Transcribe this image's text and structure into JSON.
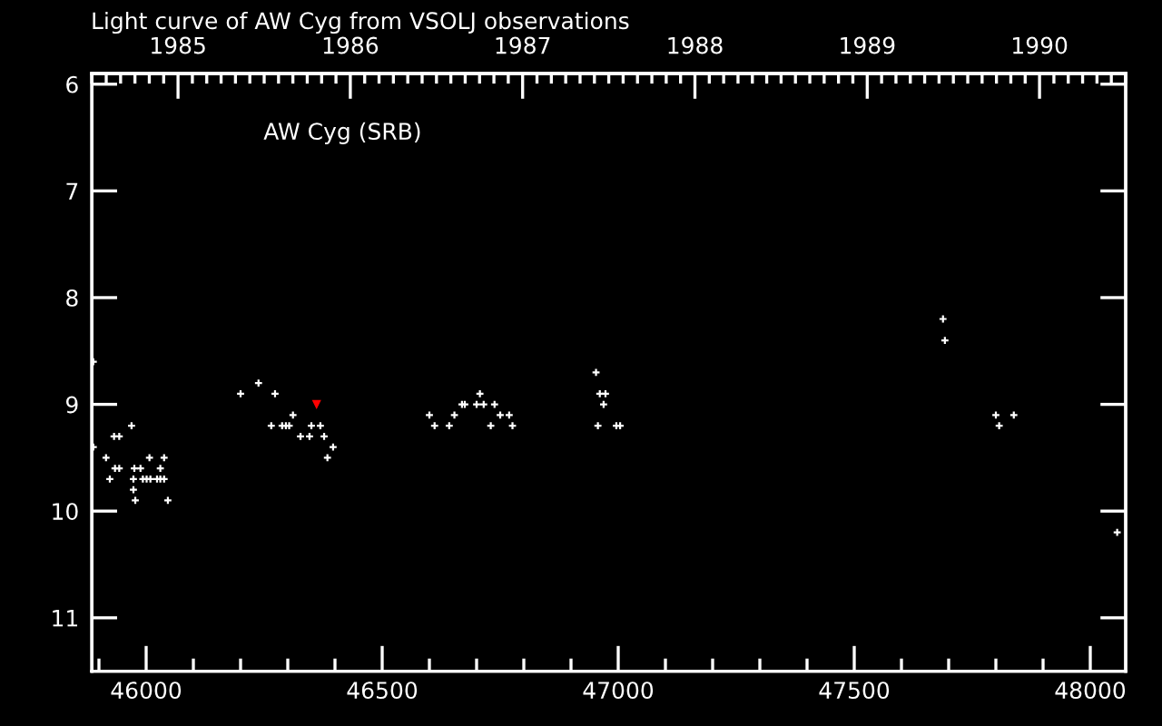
{
  "chart_data": {
    "type": "scatter",
    "title": "Light curve of AW Cyg from VSOLJ observations",
    "annotations": [
      "AW Cyg (SRB)"
    ],
    "marker": "cross",
    "grid": false,
    "xlim": [
      45885,
      48075
    ],
    "xticks": [
      46000,
      46500,
      47000,
      47500,
      48000
    ],
    "ylim": [
      11.5,
      5.9
    ],
    "yticks": [
      6,
      7,
      8,
      9,
      10,
      11
    ],
    "x2lim": [
      1984.5,
      1990.5
    ],
    "x2ticks": [
      1985,
      1986,
      1987,
      1988,
      1989,
      1990
    ],
    "series": [
      {
        "color": "#ffffff",
        "x": [
          45888,
          45888,
          45915,
          45923,
          45932,
          45934,
          45943,
          45943,
          45969,
          45973,
          45973,
          45975,
          45977,
          45988,
          45993,
          46001,
          46007,
          46009,
          46023,
          46030,
          46030,
          46038,
          46038,
          46046,
          46200,
          46238,
          46265,
          46273,
          46288,
          46296,
          46303,
          46311,
          46327,
          46346,
          46350,
          46369,
          46377,
          46384,
          46396,
          46600,
          46611,
          46642,
          46653,
          46669,
          46675,
          46700,
          46707,
          46715,
          46730,
          46738,
          46750,
          46769,
          46776,
          46953,
          46957,
          46961,
          46969,
          46973,
          46996,
          47004,
          47688,
          47692,
          47800,
          47807,
          47838,
          48057
        ],
        "values": [
          8.6,
          9.4,
          9.5,
          9.7,
          9.3,
          9.6,
          9.3,
          9.6,
          9.2,
          9.7,
          9.8,
          9.6,
          9.9,
          9.6,
          9.7,
          9.7,
          9.5,
          9.7,
          9.7,
          9.6,
          9.7,
          9.5,
          9.7,
          9.9,
          8.9,
          8.8,
          9.2,
          8.9,
          9.2,
          9.2,
          9.2,
          9.1,
          9.3,
          9.3,
          9.2,
          9.2,
          9.3,
          9.5,
          9.4,
          9.1,
          9.2,
          9.2,
          9.1,
          9.0,
          9.0,
          9.0,
          8.9,
          9.0,
          9.2,
          9.0,
          9.1,
          9.1,
          9.2,
          8.7,
          9.2,
          8.9,
          9.0,
          8.9,
          9.2,
          9.2,
          8.2,
          8.4,
          9.1,
          9.2,
          9.1,
          10.2
        ]
      },
      {
        "color": "#ff0000",
        "marker": "triangle",
        "x": [
          46361
        ],
        "values": [
          9.0
        ]
      }
    ]
  }
}
